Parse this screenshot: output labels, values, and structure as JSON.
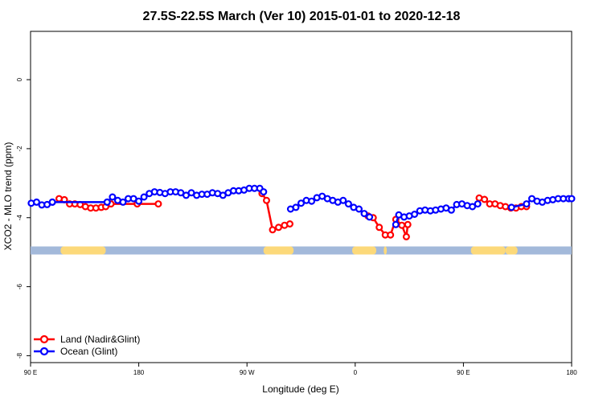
{
  "chart_data": {
    "type": "line",
    "title": "27.5S-22.5S March (Ver 10)   2015-01-01 to 2020-12-18",
    "xlabel": "Longitude (deg E)",
    "ylabel": "XCO2 - MLO trend (ppm)",
    "xlim": [
      90,
      450
    ],
    "ylim": [
      -8.2,
      1.4
    ],
    "x_ticks": [
      {
        "value": 90,
        "label": "90 E"
      },
      {
        "value": 162,
        "label": "180"
      },
      {
        "value": 234,
        "label": "90 W"
      },
      {
        "value": 306,
        "label": "0"
      },
      {
        "value": 378,
        "label": "90 E"
      },
      {
        "value": 450,
        "label": "180"
      }
    ],
    "y_ticks": [
      {
        "value": 0,
        "label": "0"
      },
      {
        "value": -2,
        "label": "-2"
      },
      {
        "value": -4,
        "label": "-4"
      },
      {
        "value": -6,
        "label": "-6"
      },
      {
        "value": -8,
        "label": "-8"
      }
    ],
    "colors": {
      "land": "#ff0000",
      "ocean": "#0000ff",
      "band_ocean": "#a3b9da",
      "band_land": "#fcd97a"
    },
    "surface_band": {
      "y": -4.95,
      "land_ranges": [
        [
          110,
          140
        ],
        [
          245,
          265
        ],
        [
          304,
          320
        ],
        [
          325,
          327
        ],
        [
          383,
          406
        ],
        [
          406,
          414
        ]
      ]
    },
    "series": [
      {
        "name": "Land (Nadir&Glint)",
        "color": "#ff0000",
        "segments": [
          {
            "x": [
              109,
              112.5,
              116,
              119.5,
              123,
              126.5,
              130,
              133.5,
              137,
              140,
              143.5,
              161,
              175
            ],
            "y": [
              -3.45,
              -3.48,
              -3.6,
              -3.6,
              -3.62,
              -3.68,
              -3.72,
              -3.72,
              -3.7,
              -3.68,
              -3.6,
              -3.6,
              -3.6
            ]
          },
          {
            "x": [
              244,
              247,
              251,
              255,
              259,
              262.5
            ],
            "y": [
              -3.3,
              -3.5,
              -4.35,
              -4.28,
              -4.22,
              -4.18
            ]
          },
          {
            "x": [
              314.5,
              318,
              322,
              326,
              329.5,
              333,
              337,
              340,
              341
            ],
            "y": [
              -3.95,
              -4.0,
              -4.28,
              -4.5,
              -4.5,
              -4.05,
              -4.22,
              -4.55,
              -4.2
            ]
          },
          {
            "x": [
              388.5,
              392,
              395.5,
              399,
              402.5,
              406,
              409.5,
              413,
              416.5,
              420
            ],
            "y": [
              -3.43,
              -3.47,
              -3.6,
              -3.6,
              -3.65,
              -3.68,
              -3.72,
              -3.72,
              -3.68,
              -3.68
            ]
          }
        ]
      },
      {
        "name": "Ocean (Glint)",
        "color": "#0000ff",
        "segments": [
          {
            "x": [
              90.5,
              94,
              97.5,
              101,
              104.5
            ],
            "y": [
              -3.58,
              -3.55,
              -3.63,
              -3.62,
              -3.55
            ]
          },
          {
            "x": [
              104.5,
              141
            ],
            "y": [
              -3.55,
              -3.55
            ]
          },
          {
            "x": [
              141,
              144.5,
              148,
              151.5,
              155,
              158.5,
              162,
              165.5,
              169,
              172.5,
              176,
              179.5,
              183,
              186.5,
              190,
              193.5,
              197,
              200.5,
              204,
              207.5,
              211,
              214.5,
              218,
              221.5,
              225,
              228.5,
              232,
              235.5,
              239,
              242.5,
              245
            ],
            "y": [
              -3.55,
              -3.4,
              -3.5,
              -3.55,
              -3.45,
              -3.45,
              -3.52,
              -3.4,
              -3.3,
              -3.25,
              -3.27,
              -3.3,
              -3.25,
              -3.25,
              -3.28,
              -3.35,
              -3.28,
              -3.35,
              -3.32,
              -3.32,
              -3.28,
              -3.3,
              -3.35,
              -3.28,
              -3.22,
              -3.22,
              -3.2,
              -3.15,
              -3.15,
              -3.15,
              -3.25
            ]
          },
          {
            "x": [
              263,
              266.5,
              270,
              273.5,
              277,
              280.5,
              284,
              287.5,
              291,
              294.5,
              298,
              301.5,
              305,
              308.5,
              312,
              315.5
            ],
            "y": [
              -3.75,
              -3.7,
              -3.58,
              -3.5,
              -3.52,
              -3.42,
              -3.38,
              -3.45,
              -3.5,
              -3.55,
              -3.5,
              -3.6,
              -3.7,
              -3.75,
              -3.88,
              -3.98
            ]
          },
          {
            "x": [
              333,
              335,
              338.5,
              342,
              345.5,
              349,
              352.5,
              356,
              359.5,
              363,
              366.5,
              370,
              373.5,
              377,
              380.5,
              384,
              387.5
            ],
            "y": [
              -4.2,
              -3.92,
              -3.98,
              -3.95,
              -3.9,
              -3.8,
              -3.78,
              -3.8,
              -3.78,
              -3.75,
              -3.72,
              -3.78,
              -3.62,
              -3.6,
              -3.65,
              -3.68,
              -3.6
            ]
          },
          {
            "x": [
              410,
              420,
              423.5,
              427,
              430.5,
              434,
              437.5,
              441,
              444.5,
              448,
              450
            ],
            "y": [
              -3.7,
              -3.6,
              -3.45,
              -3.52,
              -3.55,
              -3.5,
              -3.48,
              -3.45,
              -3.45,
              -3.45,
              -3.45
            ]
          }
        ]
      }
    ],
    "legend": "bottom-left",
    "grid": false
  }
}
